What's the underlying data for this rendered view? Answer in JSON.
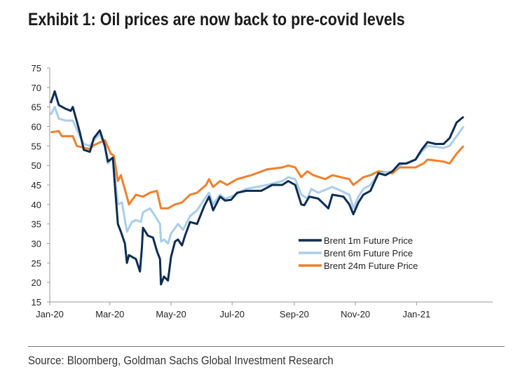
{
  "title": "Exhibit 1: Oil prices are now back to pre-covid levels",
  "source": "Source: Bloomberg, Goldman Sachs Global Investment Research",
  "chart_data": {
    "type": "line",
    "title": "",
    "xlabel": "",
    "ylabel": "",
    "ylim": [
      15,
      75
    ],
    "yticks": [
      15,
      20,
      25,
      30,
      35,
      40,
      45,
      50,
      55,
      60,
      65,
      70,
      75
    ],
    "xlim": [
      "2020-01-01",
      "2021-03-18"
    ],
    "xticks": [
      {
        "date": "2020-01-01",
        "label": "Jan-20"
      },
      {
        "date": "2020-03-01",
        "label": "Mar-20"
      },
      {
        "date": "2020-05-01",
        "label": "May-20"
      },
      {
        "date": "2020-07-01",
        "label": "Jul-20"
      },
      {
        "date": "2020-09-01",
        "label": "Sep-20"
      },
      {
        "date": "2020-11-01",
        "label": "Nov-20"
      },
      {
        "date": "2021-01-01",
        "label": "Jan-21"
      }
    ],
    "grid": false,
    "legend_position": "center-right",
    "series": [
      {
        "name": "Brent 1m Future Price",
        "color": "#0e2c52",
        "points": [
          [
            "2020-01-02",
            66
          ],
          [
            "2020-01-06",
            69
          ],
          [
            "2020-01-10",
            65.5
          ],
          [
            "2020-01-17",
            64.5
          ],
          [
            "2020-01-22",
            64
          ],
          [
            "2020-01-24",
            65
          ],
          [
            "2020-01-31",
            58.5
          ],
          [
            "2020-02-04",
            54
          ],
          [
            "2020-02-10",
            53.5
          ],
          [
            "2020-02-14",
            57
          ],
          [
            "2020-02-20",
            59
          ],
          [
            "2020-02-25",
            55
          ],
          [
            "2020-02-28",
            51
          ],
          [
            "2020-03-04",
            52
          ],
          [
            "2020-03-06",
            45
          ],
          [
            "2020-03-09",
            35
          ],
          [
            "2020-03-12",
            33
          ],
          [
            "2020-03-16",
            30
          ],
          [
            "2020-03-18",
            25
          ],
          [
            "2020-03-20",
            27
          ],
          [
            "2020-03-27",
            26
          ],
          [
            "2020-03-31",
            22.8
          ],
          [
            "2020-04-02",
            29
          ],
          [
            "2020-04-03",
            34
          ],
          [
            "2020-04-08",
            32
          ],
          [
            "2020-04-13",
            31.5
          ],
          [
            "2020-04-17",
            28
          ],
          [
            "2020-04-20",
            26
          ],
          [
            "2020-04-21",
            19.5
          ],
          [
            "2020-04-24",
            21.5
          ],
          [
            "2020-04-28",
            20.5
          ],
          [
            "2020-05-01",
            26.5
          ],
          [
            "2020-05-05",
            30.5
          ],
          [
            "2020-05-08",
            31
          ],
          [
            "2020-05-12",
            29.5
          ],
          [
            "2020-05-15",
            32
          ],
          [
            "2020-05-20",
            35.5
          ],
          [
            "2020-05-27",
            35
          ],
          [
            "2020-06-03",
            39.5
          ],
          [
            "2020-06-08",
            42
          ],
          [
            "2020-06-12",
            38.5
          ],
          [
            "2020-06-19",
            42
          ],
          [
            "2020-06-24",
            41
          ],
          [
            "2020-06-30",
            41.2
          ],
          [
            "2020-07-06",
            43
          ],
          [
            "2020-07-15",
            43.5
          ],
          [
            "2020-07-30",
            43.5
          ],
          [
            "2020-08-10",
            45
          ],
          [
            "2020-08-20",
            45
          ],
          [
            "2020-08-26",
            46
          ],
          [
            "2020-09-02",
            45
          ],
          [
            "2020-09-08",
            40
          ],
          [
            "2020-09-11",
            39.8
          ],
          [
            "2020-09-16",
            42
          ],
          [
            "2020-09-25",
            41.5
          ],
          [
            "2020-10-05",
            39
          ],
          [
            "2020-10-09",
            42.5
          ],
          [
            "2020-10-20",
            42
          ],
          [
            "2020-10-26",
            40
          ],
          [
            "2020-10-30",
            37.5
          ],
          [
            "2020-11-04",
            40.5
          ],
          [
            "2020-11-09",
            42.5
          ],
          [
            "2020-11-16",
            43.5
          ],
          [
            "2020-11-24",
            48
          ],
          [
            "2020-12-01",
            47.5
          ],
          [
            "2020-12-08",
            48.5
          ],
          [
            "2020-12-15",
            50.5
          ],
          [
            "2020-12-22",
            50.5
          ],
          [
            "2020-12-31",
            51.5
          ],
          [
            "2021-01-06",
            54
          ],
          [
            "2021-01-12",
            56
          ],
          [
            "2021-01-20",
            55.5
          ],
          [
            "2021-01-28",
            55.5
          ],
          [
            "2021-02-03",
            57
          ],
          [
            "2021-02-10",
            61
          ],
          [
            "2021-02-17",
            62.5
          ]
        ]
      },
      {
        "name": "Brent 6m Future Price",
        "color": "#a9cdea",
        "points": [
          [
            "2020-01-02",
            63
          ],
          [
            "2020-01-06",
            65
          ],
          [
            "2020-01-10",
            62
          ],
          [
            "2020-01-17",
            61.5
          ],
          [
            "2020-01-24",
            61.5
          ],
          [
            "2020-01-31",
            57.5
          ],
          [
            "2020-02-04",
            55.5
          ],
          [
            "2020-02-10",
            55
          ],
          [
            "2020-02-14",
            56.5
          ],
          [
            "2020-02-20",
            58
          ],
          [
            "2020-02-25",
            55
          ],
          [
            "2020-02-28",
            50.5
          ],
          [
            "2020-03-04",
            52
          ],
          [
            "2020-03-06",
            47
          ],
          [
            "2020-03-09",
            40
          ],
          [
            "2020-03-13",
            40.5
          ],
          [
            "2020-03-18",
            33
          ],
          [
            "2020-03-23",
            35.5
          ],
          [
            "2020-03-27",
            36
          ],
          [
            "2020-04-01",
            35.5
          ],
          [
            "2020-04-03",
            38
          ],
          [
            "2020-04-10",
            39
          ],
          [
            "2020-04-14",
            37.5
          ],
          [
            "2020-04-20",
            35
          ],
          [
            "2020-04-21",
            30.5
          ],
          [
            "2020-04-24",
            31
          ],
          [
            "2020-04-28",
            30
          ],
          [
            "2020-05-01",
            32.5
          ],
          [
            "2020-05-08",
            35
          ],
          [
            "2020-05-13",
            33.5
          ],
          [
            "2020-05-20",
            37
          ],
          [
            "2020-05-27",
            38.5
          ],
          [
            "2020-06-05",
            42
          ],
          [
            "2020-06-08",
            43
          ],
          [
            "2020-06-12",
            40
          ],
          [
            "2020-06-19",
            42.5
          ],
          [
            "2020-06-24",
            41.5
          ],
          [
            "2020-06-30",
            42
          ],
          [
            "2020-07-15",
            44
          ],
          [
            "2020-08-05",
            45
          ],
          [
            "2020-08-20",
            46
          ],
          [
            "2020-08-26",
            47
          ],
          [
            "2020-09-02",
            46.5
          ],
          [
            "2020-09-08",
            42.5
          ],
          [
            "2020-09-14",
            41.5
          ],
          [
            "2020-09-18",
            44
          ],
          [
            "2020-09-25",
            43
          ],
          [
            "2020-10-09",
            44.5
          ],
          [
            "2020-10-26",
            42.5
          ],
          [
            "2020-10-30",
            39
          ],
          [
            "2020-11-04",
            42
          ],
          [
            "2020-11-09",
            44
          ],
          [
            "2020-11-16",
            45
          ],
          [
            "2020-11-24",
            48
          ],
          [
            "2020-12-08",
            48.5
          ],
          [
            "2020-12-15",
            50
          ],
          [
            "2020-12-31",
            51.5
          ],
          [
            "2021-01-06",
            53.5
          ],
          [
            "2021-01-12",
            55
          ],
          [
            "2021-01-28",
            54.5
          ],
          [
            "2021-02-03",
            55
          ],
          [
            "2021-02-17",
            60
          ]
        ]
      },
      {
        "name": "Brent 24m Future Price",
        "color": "#f07f2d",
        "points": [
          [
            "2020-01-02",
            58.5
          ],
          [
            "2020-01-10",
            58.8
          ],
          [
            "2020-01-13",
            57.5
          ],
          [
            "2020-01-24",
            57.5
          ],
          [
            "2020-01-28",
            55
          ],
          [
            "2020-02-10",
            54.2
          ],
          [
            "2020-02-14",
            55.2
          ],
          [
            "2020-02-25",
            56.5
          ],
          [
            "2020-03-02",
            53
          ],
          [
            "2020-03-05",
            52.5
          ],
          [
            "2020-03-09",
            46
          ],
          [
            "2020-03-12",
            47.5
          ],
          [
            "2020-03-18",
            42
          ],
          [
            "2020-03-20",
            40
          ],
          [
            "2020-03-27",
            42.5
          ],
          [
            "2020-04-03",
            42
          ],
          [
            "2020-04-10",
            43
          ],
          [
            "2020-04-17",
            43.5
          ],
          [
            "2020-04-21",
            39
          ],
          [
            "2020-04-28",
            39
          ],
          [
            "2020-05-05",
            40
          ],
          [
            "2020-05-12",
            40.5
          ],
          [
            "2020-05-20",
            42.5
          ],
          [
            "2020-05-27",
            43
          ],
          [
            "2020-06-05",
            45
          ],
          [
            "2020-06-08",
            46.5
          ],
          [
            "2020-06-12",
            44.5
          ],
          [
            "2020-06-19",
            46
          ],
          [
            "2020-06-26",
            45
          ],
          [
            "2020-07-06",
            46.5
          ],
          [
            "2020-07-20",
            47.5
          ],
          [
            "2020-08-05",
            49
          ],
          [
            "2020-08-20",
            49.5
          ],
          [
            "2020-08-26",
            50
          ],
          [
            "2020-09-02",
            49.5
          ],
          [
            "2020-09-08",
            47
          ],
          [
            "2020-09-14",
            48.5
          ],
          [
            "2020-09-20",
            47.5
          ],
          [
            "2020-10-02",
            46.5
          ],
          [
            "2020-10-09",
            47.5
          ],
          [
            "2020-10-26",
            46.5
          ],
          [
            "2020-10-30",
            45
          ],
          [
            "2020-11-09",
            47
          ],
          [
            "2020-11-16",
            47.5
          ],
          [
            "2020-11-24",
            48.5
          ],
          [
            "2020-12-08",
            48
          ],
          [
            "2020-12-15",
            49.5
          ],
          [
            "2020-12-31",
            49.5
          ],
          [
            "2021-01-08",
            50.5
          ],
          [
            "2021-01-12",
            51.5
          ],
          [
            "2021-01-28",
            51
          ],
          [
            "2021-02-03",
            50.5
          ],
          [
            "2021-02-10",
            53
          ],
          [
            "2021-02-17",
            55
          ]
        ]
      }
    ]
  }
}
